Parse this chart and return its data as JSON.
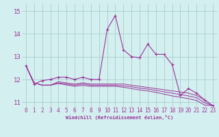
{
  "xlabel": "Windchill (Refroidissement éolien,°C)",
  "bg_color": "#d4efef",
  "grid_color": "#a0c8c8",
  "line_color": "#993399",
  "xmin": -0.5,
  "xmax": 23.5,
  "ymin": 10.8,
  "ymax": 15.3,
  "yticks": [
    11,
    12,
    13,
    14,
    15
  ],
  "xticks": [
    0,
    1,
    2,
    3,
    4,
    5,
    6,
    7,
    8,
    9,
    10,
    11,
    12,
    13,
    14,
    15,
    16,
    17,
    18,
    19,
    20,
    21,
    22,
    23
  ],
  "main_y": [
    12.6,
    11.8,
    11.95,
    12.0,
    12.1,
    12.1,
    12.0,
    12.1,
    12.0,
    12.0,
    14.2,
    14.8,
    13.3,
    13.0,
    12.95,
    13.55,
    13.1,
    13.1,
    12.65,
    11.3,
    11.6,
    11.4,
    11.1,
    10.85
  ],
  "line2_y": [
    12.6,
    11.85,
    11.75,
    11.75,
    11.9,
    11.85,
    11.8,
    11.85,
    11.8,
    11.8,
    11.8,
    11.8,
    11.8,
    11.75,
    11.7,
    11.65,
    11.6,
    11.55,
    11.5,
    11.45,
    11.4,
    11.3,
    11.1,
    10.85
  ],
  "line3_y": [
    12.6,
    11.85,
    11.75,
    11.75,
    11.85,
    11.8,
    11.75,
    11.8,
    11.75,
    11.75,
    11.75,
    11.75,
    11.72,
    11.68,
    11.62,
    11.58,
    11.52,
    11.46,
    11.4,
    11.34,
    11.28,
    11.2,
    10.98,
    10.85
  ],
  "line4_y": [
    12.6,
    11.85,
    11.75,
    11.75,
    11.82,
    11.76,
    11.7,
    11.74,
    11.7,
    11.7,
    11.7,
    11.7,
    11.66,
    11.6,
    11.54,
    11.5,
    11.43,
    11.36,
    11.28,
    11.22,
    11.16,
    11.08,
    10.88,
    10.85
  ],
  "xlabel_fontsize": 5.0,
  "tick_fontsize": 5.5,
  "ytick_fontsize": 6.5
}
